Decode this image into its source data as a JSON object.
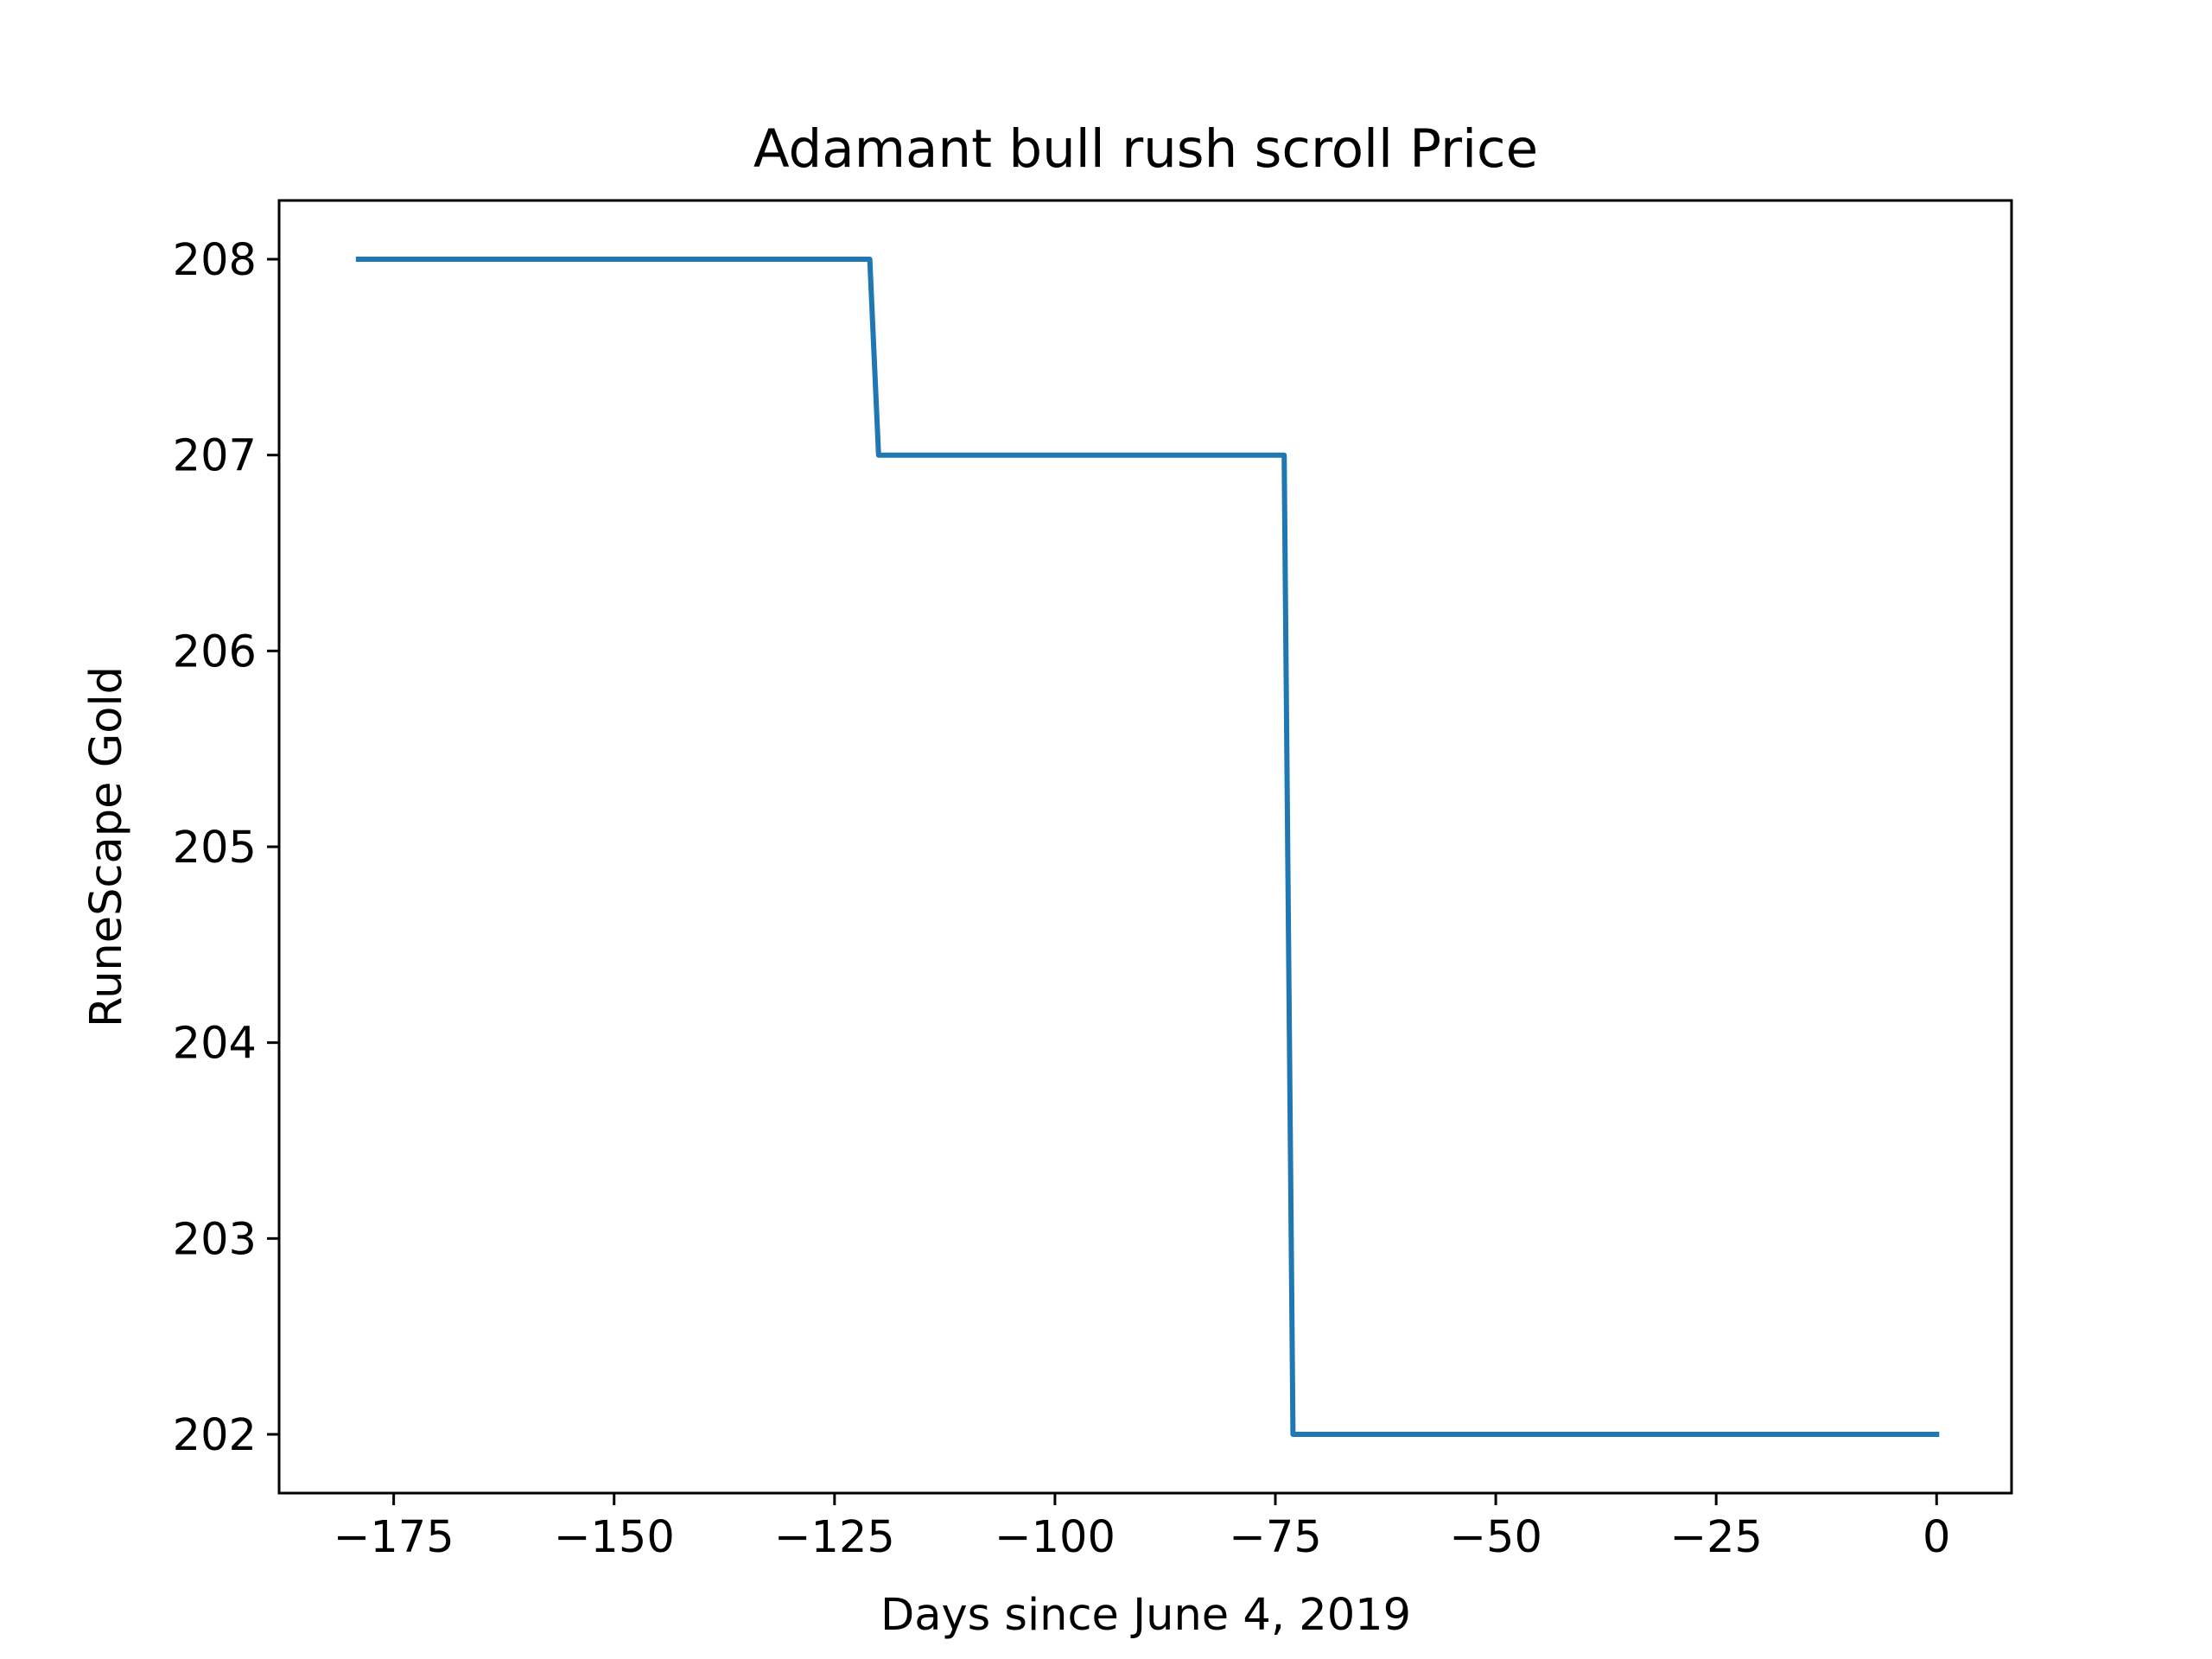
{
  "chart_data": {
    "type": "line",
    "title": "Adamant bull rush scroll Price",
    "xlabel": "Days since June 4, 2019",
    "ylabel": "RuneScape Gold",
    "xlim": [
      -188,
      8.5
    ],
    "ylim": [
      201.7,
      208.3
    ],
    "xticks": [
      -175,
      -150,
      -125,
      -100,
      -75,
      -50,
      -25,
      0
    ],
    "xtick_labels": [
      "−175",
      "−150",
      "−125",
      "−100",
      "−75",
      "−50",
      "−25",
      "0"
    ],
    "yticks": [
      202,
      203,
      204,
      205,
      206,
      207,
      208
    ],
    "ytick_labels": [
      "202",
      "203",
      "204",
      "205",
      "206",
      "207",
      "208"
    ],
    "grid": false,
    "series": [
      {
        "color": "#1f77b4",
        "x": [
          -179,
          -121,
          -120,
          -74,
          -73,
          0
        ],
        "y": [
          208,
          208,
          207,
          207,
          202,
          202
        ]
      }
    ]
  }
}
